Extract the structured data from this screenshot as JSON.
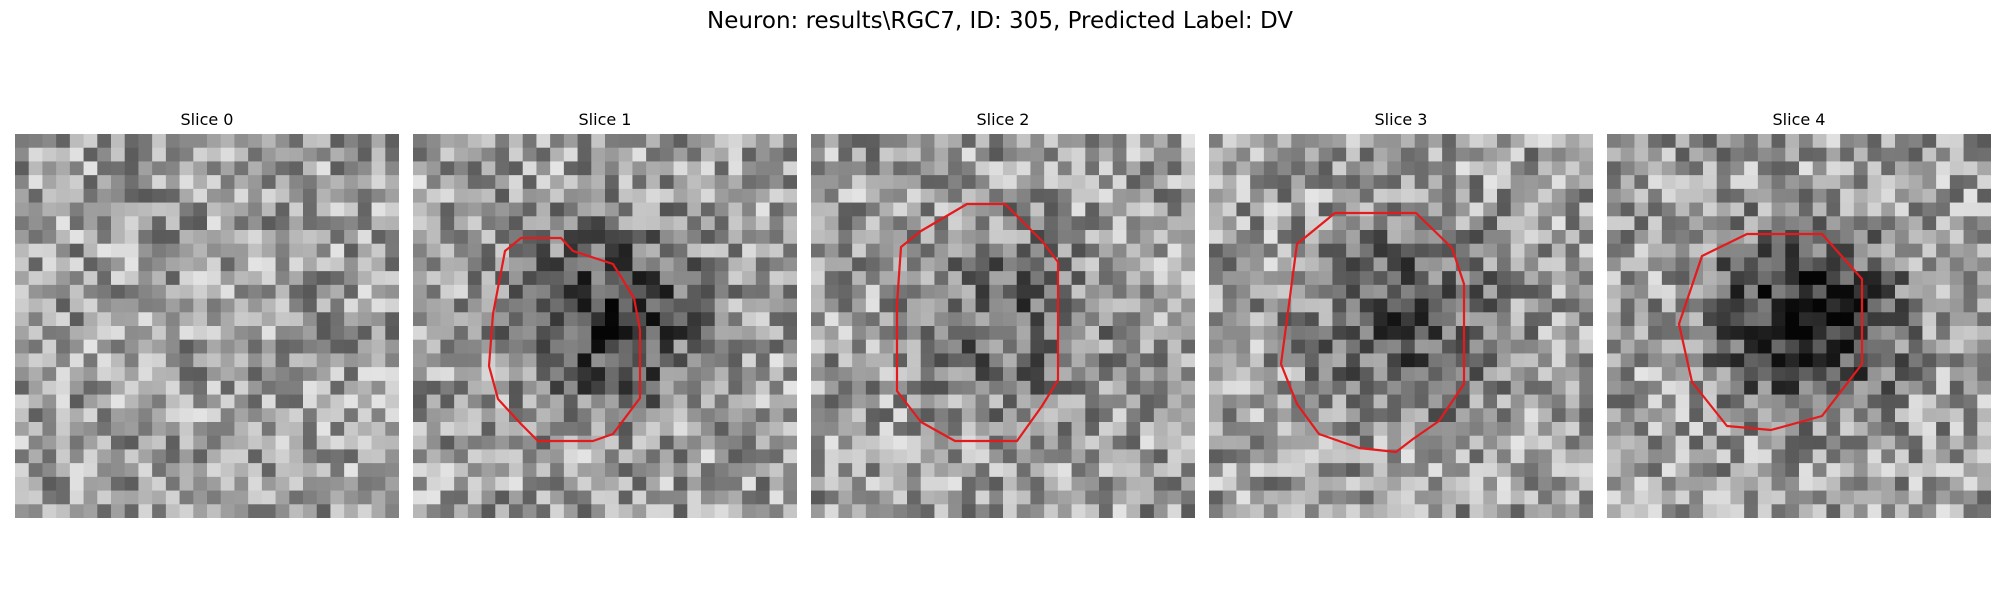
{
  "figure": {
    "title": "Neuron: results\\RGC7, ID: 305, Predicted Label: DV"
  },
  "panels": [
    {
      "title": "Slice 0",
      "roi": false,
      "dark_center": 0.0,
      "seed": 11
    },
    {
      "title": "Slice 1",
      "roi": true,
      "dark_center": 0.45,
      "seed": 23
    },
    {
      "title": "Slice 2",
      "roi": true,
      "dark_center": 0.25,
      "seed": 37
    },
    {
      "title": "Slice 3",
      "roi": true,
      "dark_center": 0.35,
      "seed": 51
    },
    {
      "title": "Slice 4",
      "roi": true,
      "dark_center": 0.55,
      "seed": 67
    }
  ],
  "colors": {
    "roi_outline": "#e41a1c",
    "background": "#ffffff"
  },
  "icons": []
}
